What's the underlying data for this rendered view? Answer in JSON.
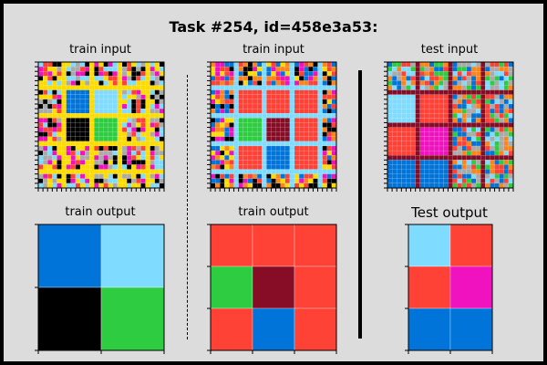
{
  "header": {
    "title": "Task #254, id=458e3a53:"
  },
  "colors": {
    "black": "#000000",
    "blue": "#0074D9",
    "red": "#FF4136",
    "green": "#2ECC40",
    "yellow": "#FFDC00",
    "gray": "#AAAAAA",
    "magenta": "#F012BE",
    "orange": "#FF851B",
    "light_blue": "#7FDBFF",
    "maroon": "#870C25"
  },
  "panels": {
    "train1_input": {
      "label": "train input",
      "size": 27,
      "separator_color": "yellow",
      "separator_every": 6,
      "noise_palette": [
        "gray",
        "red",
        "black",
        "magenta",
        "light_blue",
        "yellow"
      ],
      "blocks": [
        [
          "noise",
          "noise",
          "noise",
          "noise"
        ],
        [
          "noise",
          "blue",
          "light_blue",
          "noise"
        ],
        [
          "noise",
          "black",
          "green",
          "noise"
        ],
        [
          "noise",
          "noise",
          "noise",
          "noise"
        ]
      ]
    },
    "train1_output": {
      "label": "train output",
      "grid": [
        [
          "blue",
          "light_blue"
        ],
        [
          "black",
          "green"
        ]
      ]
    },
    "train2_input": {
      "label": "train input",
      "size": 27,
      "separator_color": "light_blue",
      "separator_every": 6,
      "noise_palette": [
        "black",
        "magenta",
        "blue",
        "yellow",
        "orange",
        "red"
      ],
      "blocks": [
        [
          "noise",
          "noise",
          "noise",
          "noise"
        ],
        [
          "noise",
          "red",
          "red",
          "red"
        ],
        [
          "noise",
          "green",
          "maroon",
          "red"
        ],
        [
          "noise",
          "red",
          "blue",
          "red"
        ],
        [
          "noise",
          "noise",
          "noise",
          "noise"
        ]
      ]
    },
    "train2_output": {
      "label": "train output",
      "grid": [
        [
          "red",
          "red",
          "red"
        ],
        [
          "green",
          "maroon",
          "red"
        ],
        [
          "red",
          "blue",
          "red"
        ]
      ]
    },
    "test_input": {
      "label": "test input",
      "size": 27,
      "separator_color": "maroon",
      "separator_every": 7,
      "noise_palette": [
        "green",
        "light_blue",
        "orange",
        "red",
        "blue",
        "gray"
      ],
      "blocks": [
        [
          "noise",
          "noise",
          "noise",
          "noise"
        ],
        [
          "light_blue",
          "red",
          "noise",
          "noise"
        ],
        [
          "red",
          "magenta",
          "noise",
          "noise"
        ],
        [
          "blue",
          "blue",
          "noise",
          "noise"
        ]
      ]
    },
    "test_output": {
      "label": "Test output",
      "grid": [
        [
          "light_blue",
          "red"
        ],
        [
          "red",
          "magenta"
        ],
        [
          "blue",
          "blue"
        ]
      ]
    }
  }
}
